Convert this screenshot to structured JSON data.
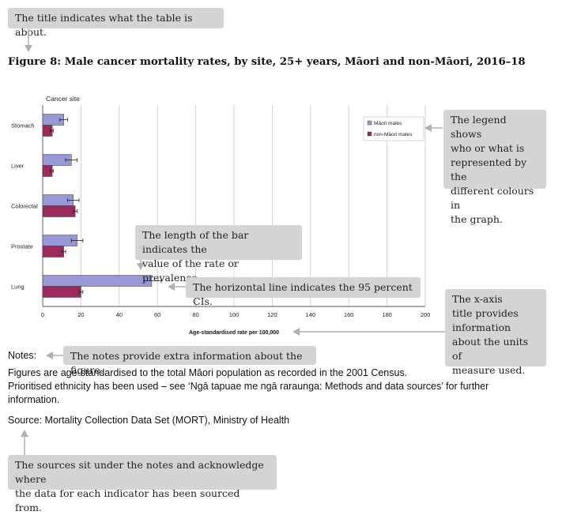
{
  "annotations": {
    "title_note": "The title indicates what the table is about.",
    "legend_note": [
      "The legend shows",
      "who or what is",
      "represented by the",
      "different colours in",
      "the graph."
    ],
    "bar_length_note": [
      "The length of the bar indicates the",
      "value of the rate or prevalence."
    ],
    "ci_note": "The horizontal line indicates the 95 percent CIs.",
    "xaxis_note": [
      "The x-axis",
      "title provides",
      "information",
      "about the units of",
      "measure used."
    ],
    "notes_note": "The notes provide extra information about the figure.",
    "sources_note": [
      "The sources sit under the notes and acknowledge where",
      "the data for each indicator has been sourced from."
    ]
  },
  "notes": {
    "label": "Notes:",
    "lines": [
      "Figures are age-standardised to the total Māori population as recorded in the 2001 Census.",
      "Prioritised ethnicity has been used – see ‘Ngā tapuae me ngā raraunga: Methods and data sources’ for further",
      "information."
    ],
    "source": "Source: Mortality Collection Data Set (MORT), Ministry of Health"
  },
  "colors": {
    "maori": "#9898d6",
    "non_maori": "#9c2a5e",
    "callout": "#d4d4d4",
    "arrow": "#b0b0b0"
  },
  "chart_data": {
    "type": "bar",
    "orientation": "horizontal",
    "title": "Figure 8: Male cancer mortality rates, by site, 25+ years, Māori and non-Māori, 2016–18",
    "ylabel": "Cancer site",
    "xlabel": "Age-standardised rate per 100,000",
    "xlim": [
      0,
      200
    ],
    "xticks": [
      0,
      20,
      40,
      60,
      80,
      100,
      120,
      140,
      160,
      180,
      200
    ],
    "grid": true,
    "legend_position": "top-right",
    "categories": [
      "Stomach",
      "Liver",
      "Colorectal",
      "Prostate",
      "Lung"
    ],
    "series": [
      {
        "name": "Māori males",
        "values": [
          11,
          15,
          16,
          18,
          57
        ],
        "ci_low": [
          9,
          12,
          13,
          15,
          53
        ],
        "ci_high": [
          13,
          18,
          19,
          21,
          62
        ]
      },
      {
        "name": "non-Māori males",
        "values": [
          5,
          5,
          17,
          11,
          20
        ],
        "ci_low": [
          4,
          4,
          16,
          10,
          19
        ],
        "ci_high": [
          5.5,
          5.5,
          18,
          12,
          21
        ]
      }
    ]
  }
}
